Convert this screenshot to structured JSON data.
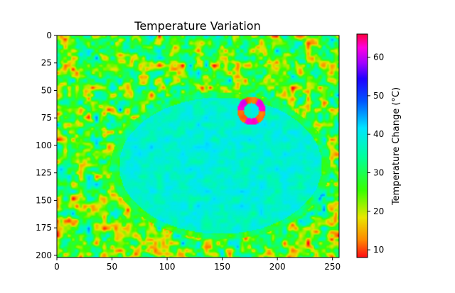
{
  "chart_data": {
    "type": "heatmap",
    "title": "Temperature Variation",
    "xlabel": "",
    "ylabel": "",
    "xlim": [
      0,
      256
    ],
    "ylim": [
      202,
      0
    ],
    "y_axis_inverted": true,
    "x_ticks": [
      0,
      50,
      100,
      150,
      200,
      250
    ],
    "y_ticks": [
      0,
      25,
      50,
      75,
      100,
      125,
      150,
      175,
      200
    ],
    "colormap": "gist_rainbow-like (red → yellow → green → cyan → blue → violet → magenta → pink)",
    "colorbar": {
      "label": "Temperature Change (°C)",
      "range": [
        8,
        66
      ],
      "ticks": [
        10,
        20,
        30,
        40,
        50,
        60
      ],
      "placement": "right"
    },
    "description_values": {
      "background_noise_range_c": [
        22,
        50
      ],
      "object_interior_c": [
        36,
        42
      ],
      "hot_ring_center": [
        175,
        68
      ],
      "hot_ring_c": [
        8,
        60
      ]
    },
    "grid": false,
    "legend": "none"
  }
}
